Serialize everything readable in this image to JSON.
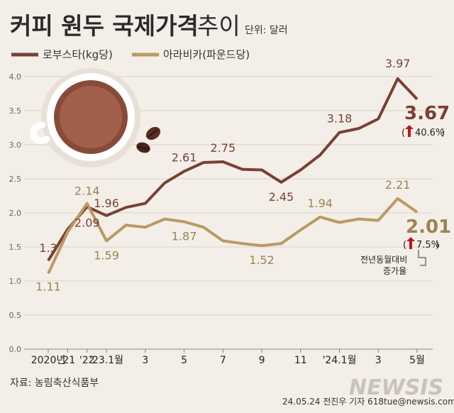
{
  "title": "커피 원두 국제가격",
  "title_suffix": "추이",
  "unit": "단위: 달러",
  "source": "자료: 농림축산식품부",
  "credit": "24.05.24  전진우  기자  618tue@newsis.com",
  "logo": "NEWSIS",
  "colors": {
    "robusta": "#7a4034",
    "arabica": "#b99a62",
    "background": "#f3efe8",
    "arrow": "#c0141c"
  },
  "icons": [
    "coffee-cup-icon",
    "coffee-bean-icon"
  ],
  "chart_data": {
    "type": "line",
    "ylim": [
      0,
      4
    ],
    "yticks": [
      0.0,
      0.5,
      1.0,
      1.5,
      2.0,
      2.5,
      3.0,
      3.5,
      4.0
    ],
    "ytick_labels": [
      "0.0",
      "0.5",
      "1.0",
      "1.5",
      "2.0",
      "2.5",
      "3.0",
      "3.5",
      "4.0"
    ],
    "x": [
      "2020",
      "2021",
      "2022",
      "2023.1",
      "2023.2",
      "2023.3",
      "2023.4",
      "2023.5",
      "2023.6",
      "2023.7",
      "2023.8",
      "2023.9",
      "2023.10",
      "2023.11",
      "2023.12",
      "2024.1",
      "2024.2",
      "2024.3",
      "2024.4",
      "2024.5"
    ],
    "xtick_labels": [
      {
        "index": 0,
        "label": "2020년"
      },
      {
        "index": 1,
        "label": "'21"
      },
      {
        "index": 2,
        "label": "'22"
      },
      {
        "index": 3,
        "label": "'23.1월"
      },
      {
        "index": 5,
        "label": "3"
      },
      {
        "index": 7,
        "label": "5"
      },
      {
        "index": 9,
        "label": "7"
      },
      {
        "index": 11,
        "label": "9"
      },
      {
        "index": 13,
        "label": "11"
      },
      {
        "index": 15,
        "label": "'24.1월"
      },
      {
        "index": 17,
        "label": "3"
      },
      {
        "index": 19,
        "label": "5월"
      }
    ],
    "series": [
      {
        "name": "로부스타(kg당)",
        "values": [
          1.3,
          1.76,
          2.09,
          1.96,
          2.08,
          2.14,
          2.44,
          2.61,
          2.74,
          2.75,
          2.64,
          2.63,
          2.45,
          2.63,
          2.85,
          3.18,
          3.24,
          3.38,
          3.97,
          3.67
        ]
      },
      {
        "name": "아라비카(파운드당)",
        "values": [
          1.11,
          1.72,
          2.14,
          1.59,
          1.82,
          1.79,
          1.91,
          1.87,
          1.79,
          1.59,
          1.55,
          1.52,
          1.55,
          1.75,
          1.94,
          1.86,
          1.91,
          1.89,
          2.21,
          2.01
        ]
      }
    ],
    "point_labels": {
      "robusta": [
        {
          "index": 0,
          "text": "1.3"
        },
        {
          "index": 2,
          "text": "2.09"
        },
        {
          "index": 3,
          "text": "1.96"
        },
        {
          "index": 7,
          "text": "2.61"
        },
        {
          "index": 9,
          "text": "2.75"
        },
        {
          "index": 12,
          "text": "2.45"
        },
        {
          "index": 15,
          "text": "3.18"
        },
        {
          "index": 18,
          "text": "3.97"
        }
      ],
      "arabica": [
        {
          "index": 0,
          "text": "1.11"
        },
        {
          "index": 2,
          "text": "2.14"
        },
        {
          "index": 3,
          "text": "1.59"
        },
        {
          "index": 7,
          "text": "1.87"
        },
        {
          "index": 11,
          "text": "1.52"
        },
        {
          "index": 14,
          "text": "1.94"
        },
        {
          "index": 18,
          "text": "2.21"
        }
      ]
    },
    "latest": {
      "robusta": {
        "value": "3.67",
        "change": "40.6%"
      },
      "arabica": {
        "value": "2.01",
        "change": "7.5%"
      }
    },
    "change_note": [
      "전년동월대비",
      "증가율"
    ]
  }
}
